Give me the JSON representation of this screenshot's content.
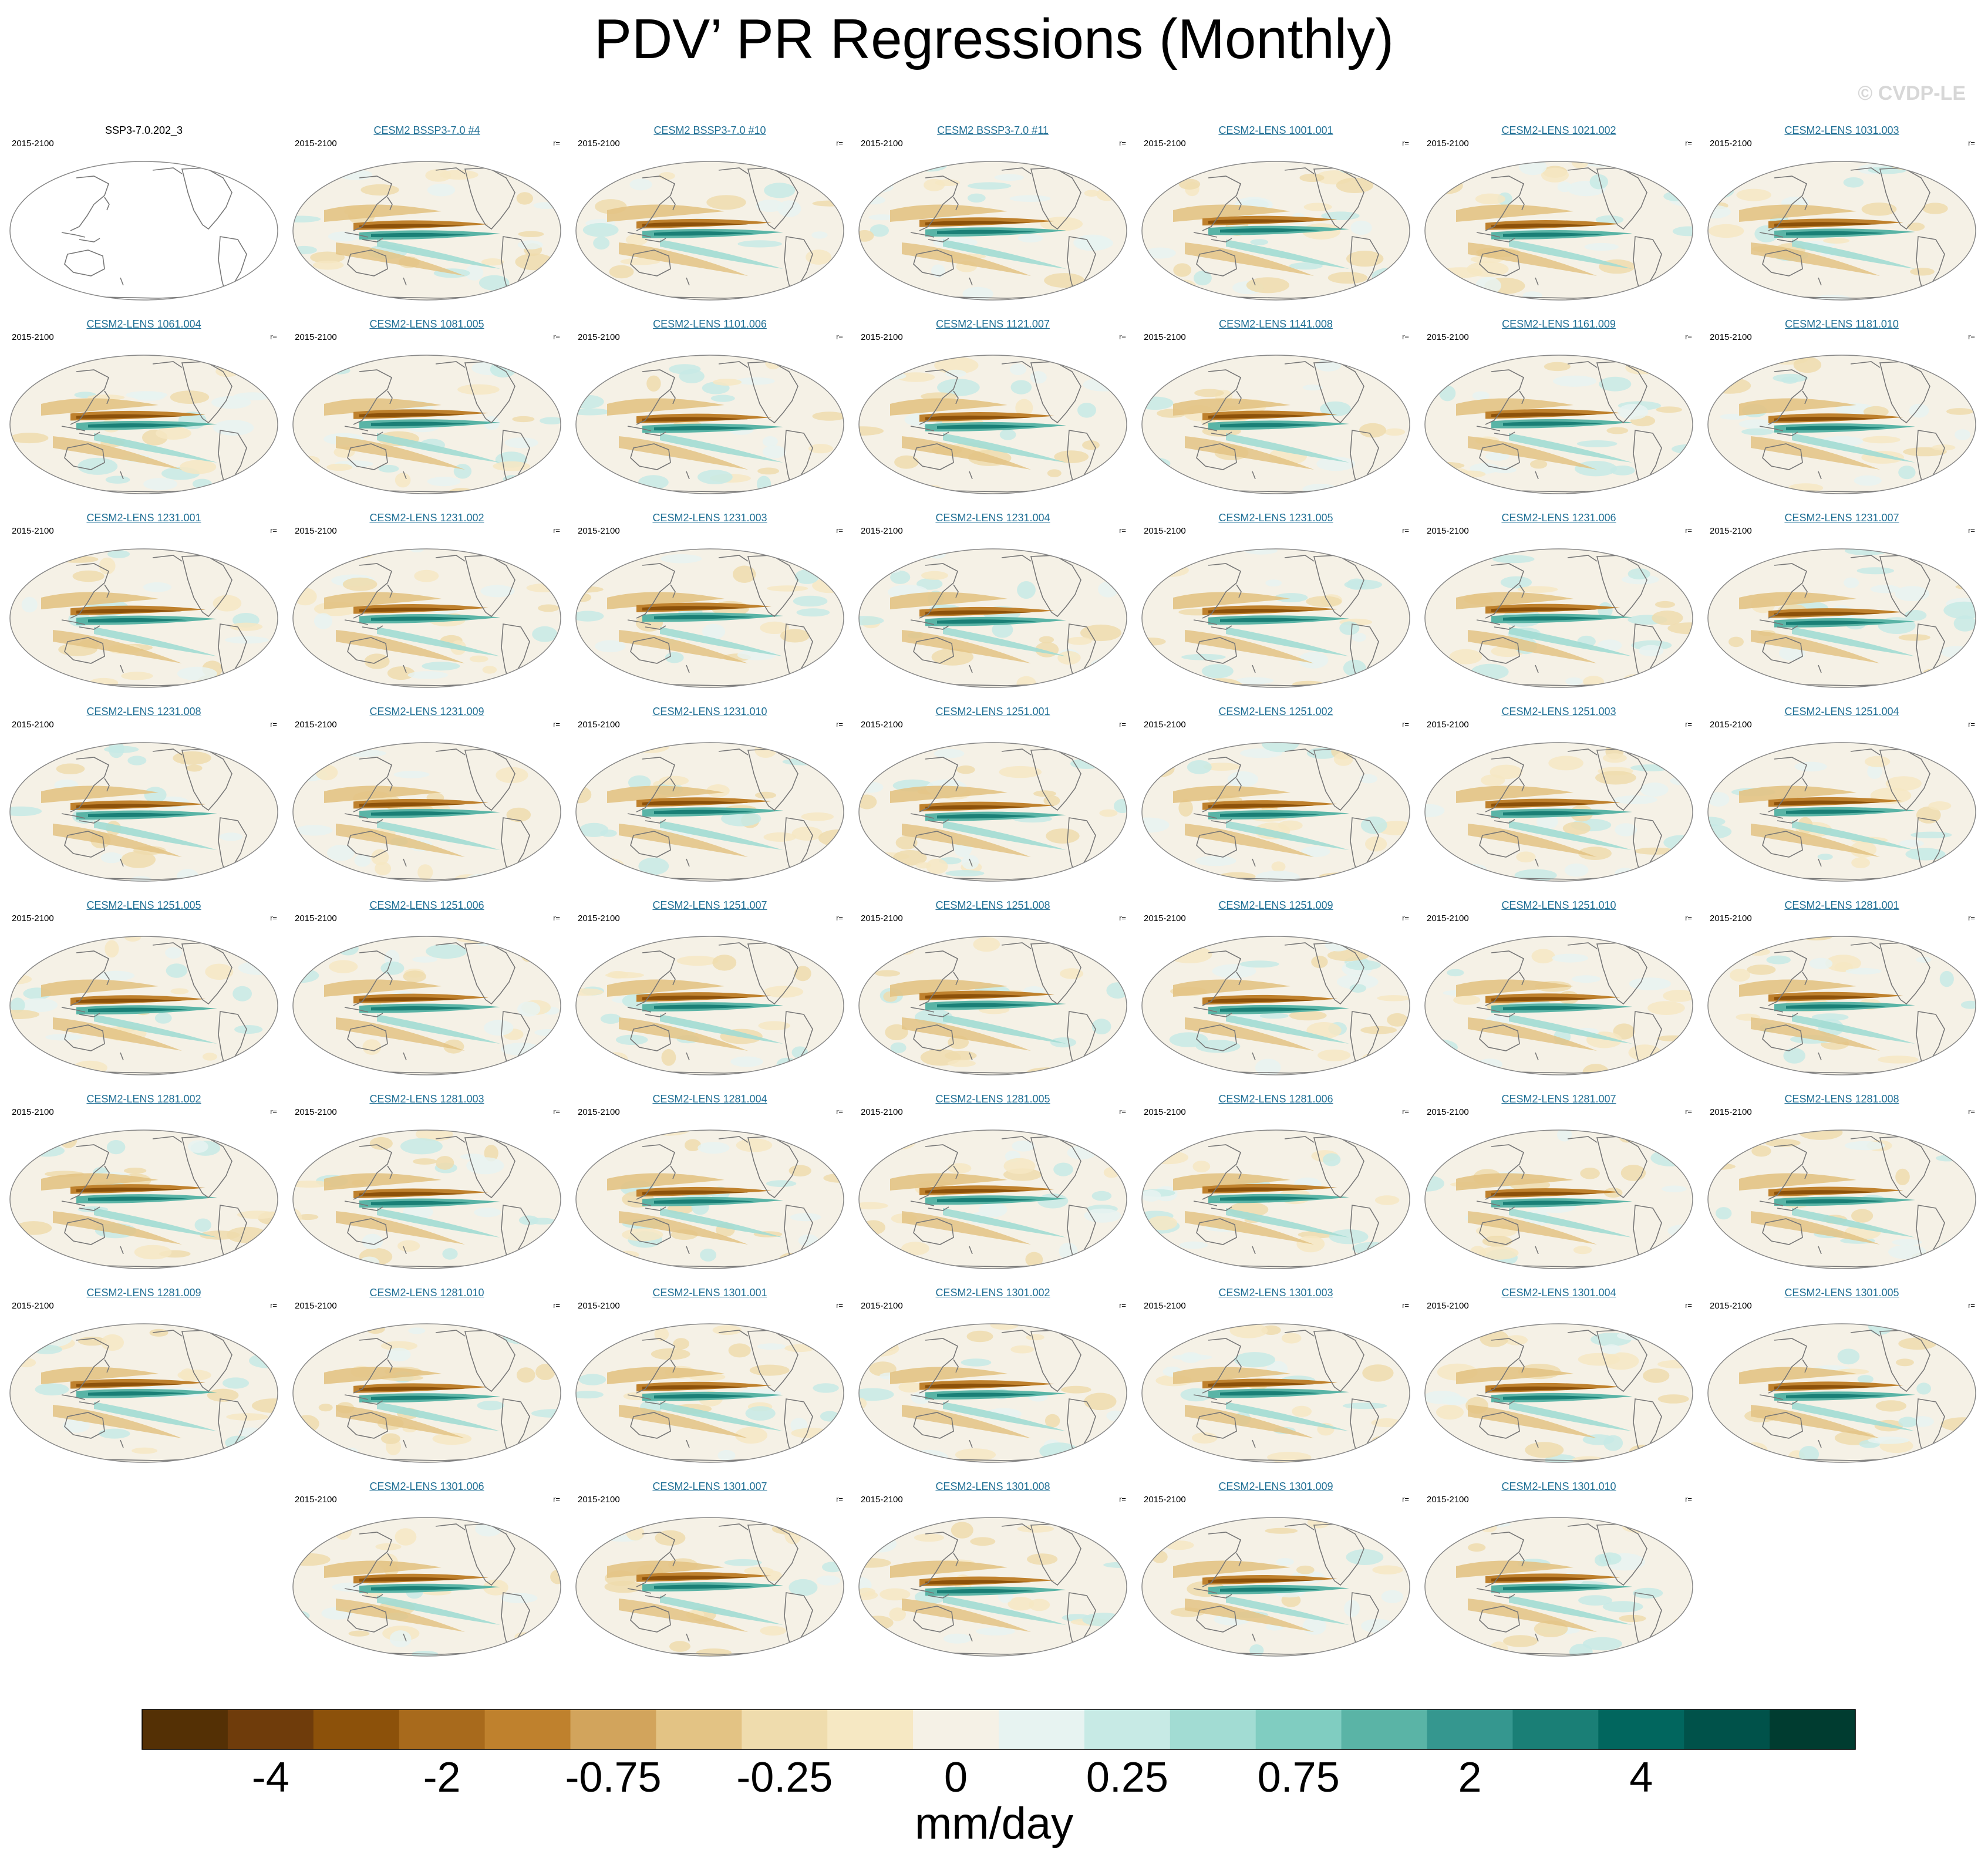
{
  "figure": {
    "title": "PDV’ PR Regressions (Monthly)",
    "credit": "© CVDP-LE"
  },
  "chart_data": {
    "type": "heatmap",
    "title": "PDV’ PR Regressions (Monthly)",
    "variable": "PR regression on PDV",
    "projection": "Robinson (Pacific-centered)",
    "period": "2015-2100",
    "units": "mm/day",
    "colorbar": {
      "label": "mm/day",
      "tick_labels": [
        "-4",
        "-2",
        "-0.75",
        "-0.25",
        "0",
        "0.25",
        "0.75",
        "2",
        "4"
      ],
      "levels": [
        -5,
        -4,
        -3,
        -2,
        -1,
        -0.75,
        -0.5,
        -0.25,
        -0.1,
        0,
        0.1,
        0.25,
        0.5,
        0.75,
        1,
        2,
        3,
        4,
        5
      ],
      "colors": [
        "#543005",
        "#6f3c0b",
        "#8c510a",
        "#a86a1c",
        "#bf812d",
        "#d2a45c",
        "#e3c384",
        "#efdcad",
        "#f6e8c3",
        "#f5f1e6",
        "#e7f3f1",
        "#c7eae5",
        "#a2dcd3",
        "#80cdc1",
        "#5ab4a6",
        "#35978f",
        "#1a7f76",
        "#01665e",
        "#00524a",
        "#003c30"
      ]
    },
    "observation_panel": {
      "title": "SSP3-7.0.202_3",
      "period": "2015-2100",
      "note": "blank map (no data shown)"
    },
    "panels": [
      {
        "title": "CESM2 BSSP3-7.0 #4",
        "period": "2015-2100",
        "r": "r="
      },
      {
        "title": "CESM2 BSSP3-7.0 #10",
        "period": "2015-2100",
        "r": "r="
      },
      {
        "title": "CESM2 BSSP3-7.0 #11",
        "period": "2015-2100",
        "r": "r="
      },
      {
        "title": "CESM2-LENS 1001.001",
        "period": "2015-2100",
        "r": "r="
      },
      {
        "title": "CESM2-LENS 1021.002",
        "period": "2015-2100",
        "r": "r="
      },
      {
        "title": "CESM2-LENS 1031.003",
        "period": "2015-2100",
        "r": "r="
      },
      {
        "title": "CESM2-LENS 1061.004",
        "period": "2015-2100",
        "r": "r="
      },
      {
        "title": "CESM2-LENS 1081.005",
        "period": "2015-2100",
        "r": "r="
      },
      {
        "title": "CESM2-LENS 1101.006",
        "period": "2015-2100",
        "r": "r="
      },
      {
        "title": "CESM2-LENS 1121.007",
        "period": "2015-2100",
        "r": "r="
      },
      {
        "title": "CESM2-LENS 1141.008",
        "period": "2015-2100",
        "r": "r="
      },
      {
        "title": "CESM2-LENS 1161.009",
        "period": "2015-2100",
        "r": "r="
      },
      {
        "title": "CESM2-LENS 1181.010",
        "period": "2015-2100",
        "r": "r="
      },
      {
        "title": "CESM2-LENS 1231.001",
        "period": "2015-2100",
        "r": "r="
      },
      {
        "title": "CESM2-LENS 1231.002",
        "period": "2015-2100",
        "r": "r="
      },
      {
        "title": "CESM2-LENS 1231.003",
        "period": "2015-2100",
        "r": "r="
      },
      {
        "title": "CESM2-LENS 1231.004",
        "period": "2015-2100",
        "r": "r="
      },
      {
        "title": "CESM2-LENS 1231.005",
        "period": "2015-2100",
        "r": "r="
      },
      {
        "title": "CESM2-LENS 1231.006",
        "period": "2015-2100",
        "r": "r="
      },
      {
        "title": "CESM2-LENS 1231.007",
        "period": "2015-2100",
        "r": "r="
      },
      {
        "title": "CESM2-LENS 1231.008",
        "period": "2015-2100",
        "r": "r="
      },
      {
        "title": "CESM2-LENS 1231.009",
        "period": "2015-2100",
        "r": "r="
      },
      {
        "title": "CESM2-LENS 1231.010",
        "period": "2015-2100",
        "r": "r="
      },
      {
        "title": "CESM2-LENS 1251.001",
        "period": "2015-2100",
        "r": "r="
      },
      {
        "title": "CESM2-LENS 1251.002",
        "period": "2015-2100",
        "r": "r="
      },
      {
        "title": "CESM2-LENS 1251.003",
        "period": "2015-2100",
        "r": "r="
      },
      {
        "title": "CESM2-LENS 1251.004",
        "period": "2015-2100",
        "r": "r="
      },
      {
        "title": "CESM2-LENS 1251.005",
        "period": "2015-2100",
        "r": "r="
      },
      {
        "title": "CESM2-LENS 1251.006",
        "period": "2015-2100",
        "r": "r="
      },
      {
        "title": "CESM2-LENS 1251.007",
        "period": "2015-2100",
        "r": "r="
      },
      {
        "title": "CESM2-LENS 1251.008",
        "period": "2015-2100",
        "r": "r="
      },
      {
        "title": "CESM2-LENS 1251.009",
        "period": "2015-2100",
        "r": "r="
      },
      {
        "title": "CESM2-LENS 1251.010",
        "period": "2015-2100",
        "r": "r="
      },
      {
        "title": "CESM2-LENS 1281.001",
        "period": "2015-2100",
        "r": "r="
      },
      {
        "title": "CESM2-LENS 1281.002",
        "period": "2015-2100",
        "r": "r="
      },
      {
        "title": "CESM2-LENS 1281.003",
        "period": "2015-2100",
        "r": "r="
      },
      {
        "title": "CESM2-LENS 1281.004",
        "period": "2015-2100",
        "r": "r="
      },
      {
        "title": "CESM2-LENS 1281.005",
        "period": "2015-2100",
        "r": "r="
      },
      {
        "title": "CESM2-LENS 1281.006",
        "period": "2015-2100",
        "r": "r="
      },
      {
        "title": "CESM2-LENS 1281.007",
        "period": "2015-2100",
        "r": "r="
      },
      {
        "title": "CESM2-LENS 1281.008",
        "period": "2015-2100",
        "r": "r="
      },
      {
        "title": "CESM2-LENS 1281.009",
        "period": "2015-2100",
        "r": "r="
      },
      {
        "title": "CESM2-LENS 1281.010",
        "period": "2015-2100",
        "r": "r="
      },
      {
        "title": "CESM2-LENS 1301.001",
        "period": "2015-2100",
        "r": "r="
      },
      {
        "title": "CESM2-LENS 1301.002",
        "period": "2015-2100",
        "r": "r="
      },
      {
        "title": "CESM2-LENS 1301.003",
        "period": "2015-2100",
        "r": "r="
      },
      {
        "title": "CESM2-LENS 1301.004",
        "period": "2015-2100",
        "r": "r="
      },
      {
        "title": "CESM2-LENS 1301.005",
        "period": "2015-2100",
        "r": "r="
      },
      {
        "title": "CESM2-LENS 1301.006",
        "period": "2015-2100",
        "r": "r="
      },
      {
        "title": "CESM2-LENS 1301.007",
        "period": "2015-2100",
        "r": "r="
      },
      {
        "title": "CESM2-LENS 1301.008",
        "period": "2015-2100",
        "r": "r="
      },
      {
        "title": "CESM2-LENS 1301.009",
        "period": "2015-2100",
        "r": "r="
      },
      {
        "title": "CESM2-LENS 1301.010",
        "period": "2015-2100",
        "r": "r="
      }
    ]
  }
}
